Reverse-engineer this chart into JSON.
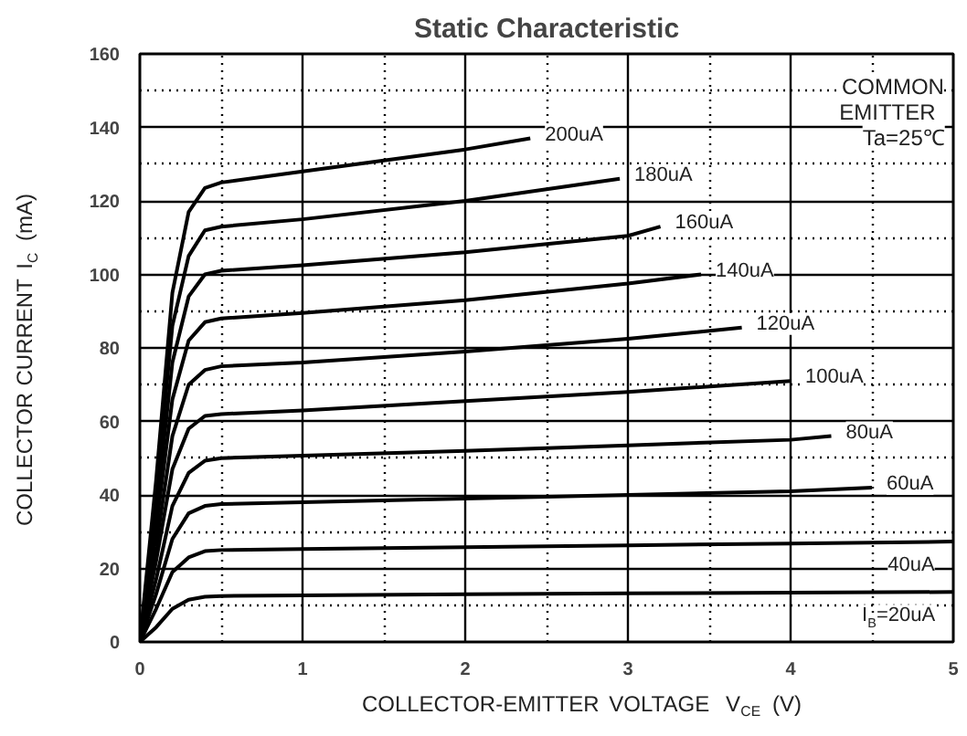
{
  "chart_data": {
    "type": "line",
    "title": "Static Characteristic",
    "xlabel": "COLLECTOR-EMITTER VOLTAGE  V$_{CE}$  (V)",
    "ylabel": "COLLECTOR CURRENT  I$_{C}$  (mA)",
    "xlim": [
      0,
      5
    ],
    "ylim": [
      0,
      160
    ],
    "xticks": [
      0,
      1,
      2,
      3,
      4,
      5
    ],
    "yticks": [
      0,
      20,
      40,
      60,
      80,
      100,
      120,
      140,
      160
    ],
    "grid": true,
    "marker": "none",
    "line_style": "solid",
    "series": [
      {
        "name": "I$_{B}$=20uA",
        "color": "#000000",
        "x": [
          0,
          0.1,
          0.2,
          0.3,
          0.4,
          0.5,
          1,
          2,
          3,
          4,
          5
        ],
        "values": [
          0,
          4,
          9,
          11.5,
          12.3,
          12.5,
          12.7,
          13,
          13.2,
          13.4,
          13.6
        ]
      },
      {
        "name": "40uA",
        "color": "#000000",
        "x": [
          0,
          0.1,
          0.2,
          0.3,
          0.4,
          0.5,
          1,
          2,
          3,
          4,
          5
        ],
        "values": [
          0,
          9,
          19,
          23,
          24.7,
          25,
          25.3,
          25.8,
          26.3,
          26.8,
          27.3
        ]
      },
      {
        "name": "60uA",
        "color": "#000000",
        "x": [
          0,
          0.1,
          0.2,
          0.3,
          0.4,
          0.5,
          1,
          2,
          3,
          4,
          4.5
        ],
        "values": [
          0,
          13,
          28,
          35,
          37,
          37.5,
          38,
          39,
          40,
          41,
          42
        ]
      },
      {
        "name": "80uA",
        "color": "#000000",
        "x": [
          0,
          0.1,
          0.2,
          0.3,
          0.4,
          0.5,
          1,
          2,
          3,
          4,
          4.25
        ],
        "values": [
          0,
          17,
          37,
          46,
          49.3,
          50,
          50.7,
          52,
          53.5,
          55,
          56
        ]
      },
      {
        "name": "100uA",
        "color": "#000000",
        "x": [
          0,
          0.1,
          0.2,
          0.3,
          0.4,
          0.5,
          1,
          2,
          3,
          4
        ],
        "values": [
          0,
          22,
          47,
          58,
          61.5,
          62,
          63,
          65.5,
          68,
          71
        ]
      },
      {
        "name": "120uA",
        "color": "#000000",
        "x": [
          0,
          0.1,
          0.2,
          0.3,
          0.4,
          0.5,
          1,
          2,
          3,
          3.7
        ],
        "values": [
          0,
          26,
          56,
          70,
          74,
          75,
          76,
          79,
          82.5,
          85.5
        ]
      },
      {
        "name": "140uA",
        "color": "#000000",
        "x": [
          0,
          0.1,
          0.2,
          0.3,
          0.4,
          0.5,
          1,
          2,
          3,
          3.45
        ],
        "values": [
          0,
          31,
          66,
          82,
          87,
          88,
          89.5,
          93,
          97.5,
          100
        ]
      },
      {
        "name": "160uA",
        "color": "#000000",
        "x": [
          0,
          0.1,
          0.2,
          0.3,
          0.4,
          0.5,
          1,
          2,
          3,
          3.2
        ],
        "values": [
          0,
          35,
          76,
          94,
          100,
          101,
          102.5,
          106,
          110.5,
          113
        ]
      },
      {
        "name": "180uA",
        "color": "#000000",
        "x": [
          0,
          0.1,
          0.2,
          0.3,
          0.4,
          0.5,
          1,
          2,
          2.95
        ],
        "values": [
          0,
          40,
          86,
          105,
          112,
          113,
          115,
          120,
          126
        ]
      },
      {
        "name": "200uA",
        "color": "#000000",
        "x": [
          0,
          0.1,
          0.2,
          0.3,
          0.4,
          0.5,
          1,
          2,
          2.4
        ],
        "values": [
          0,
          44,
          95,
          117,
          123.5,
          125,
          128,
          134,
          137
        ]
      }
    ],
    "annotations": [
      "COMMON",
      "EMITTER",
      "Ta=25℃"
    ]
  }
}
